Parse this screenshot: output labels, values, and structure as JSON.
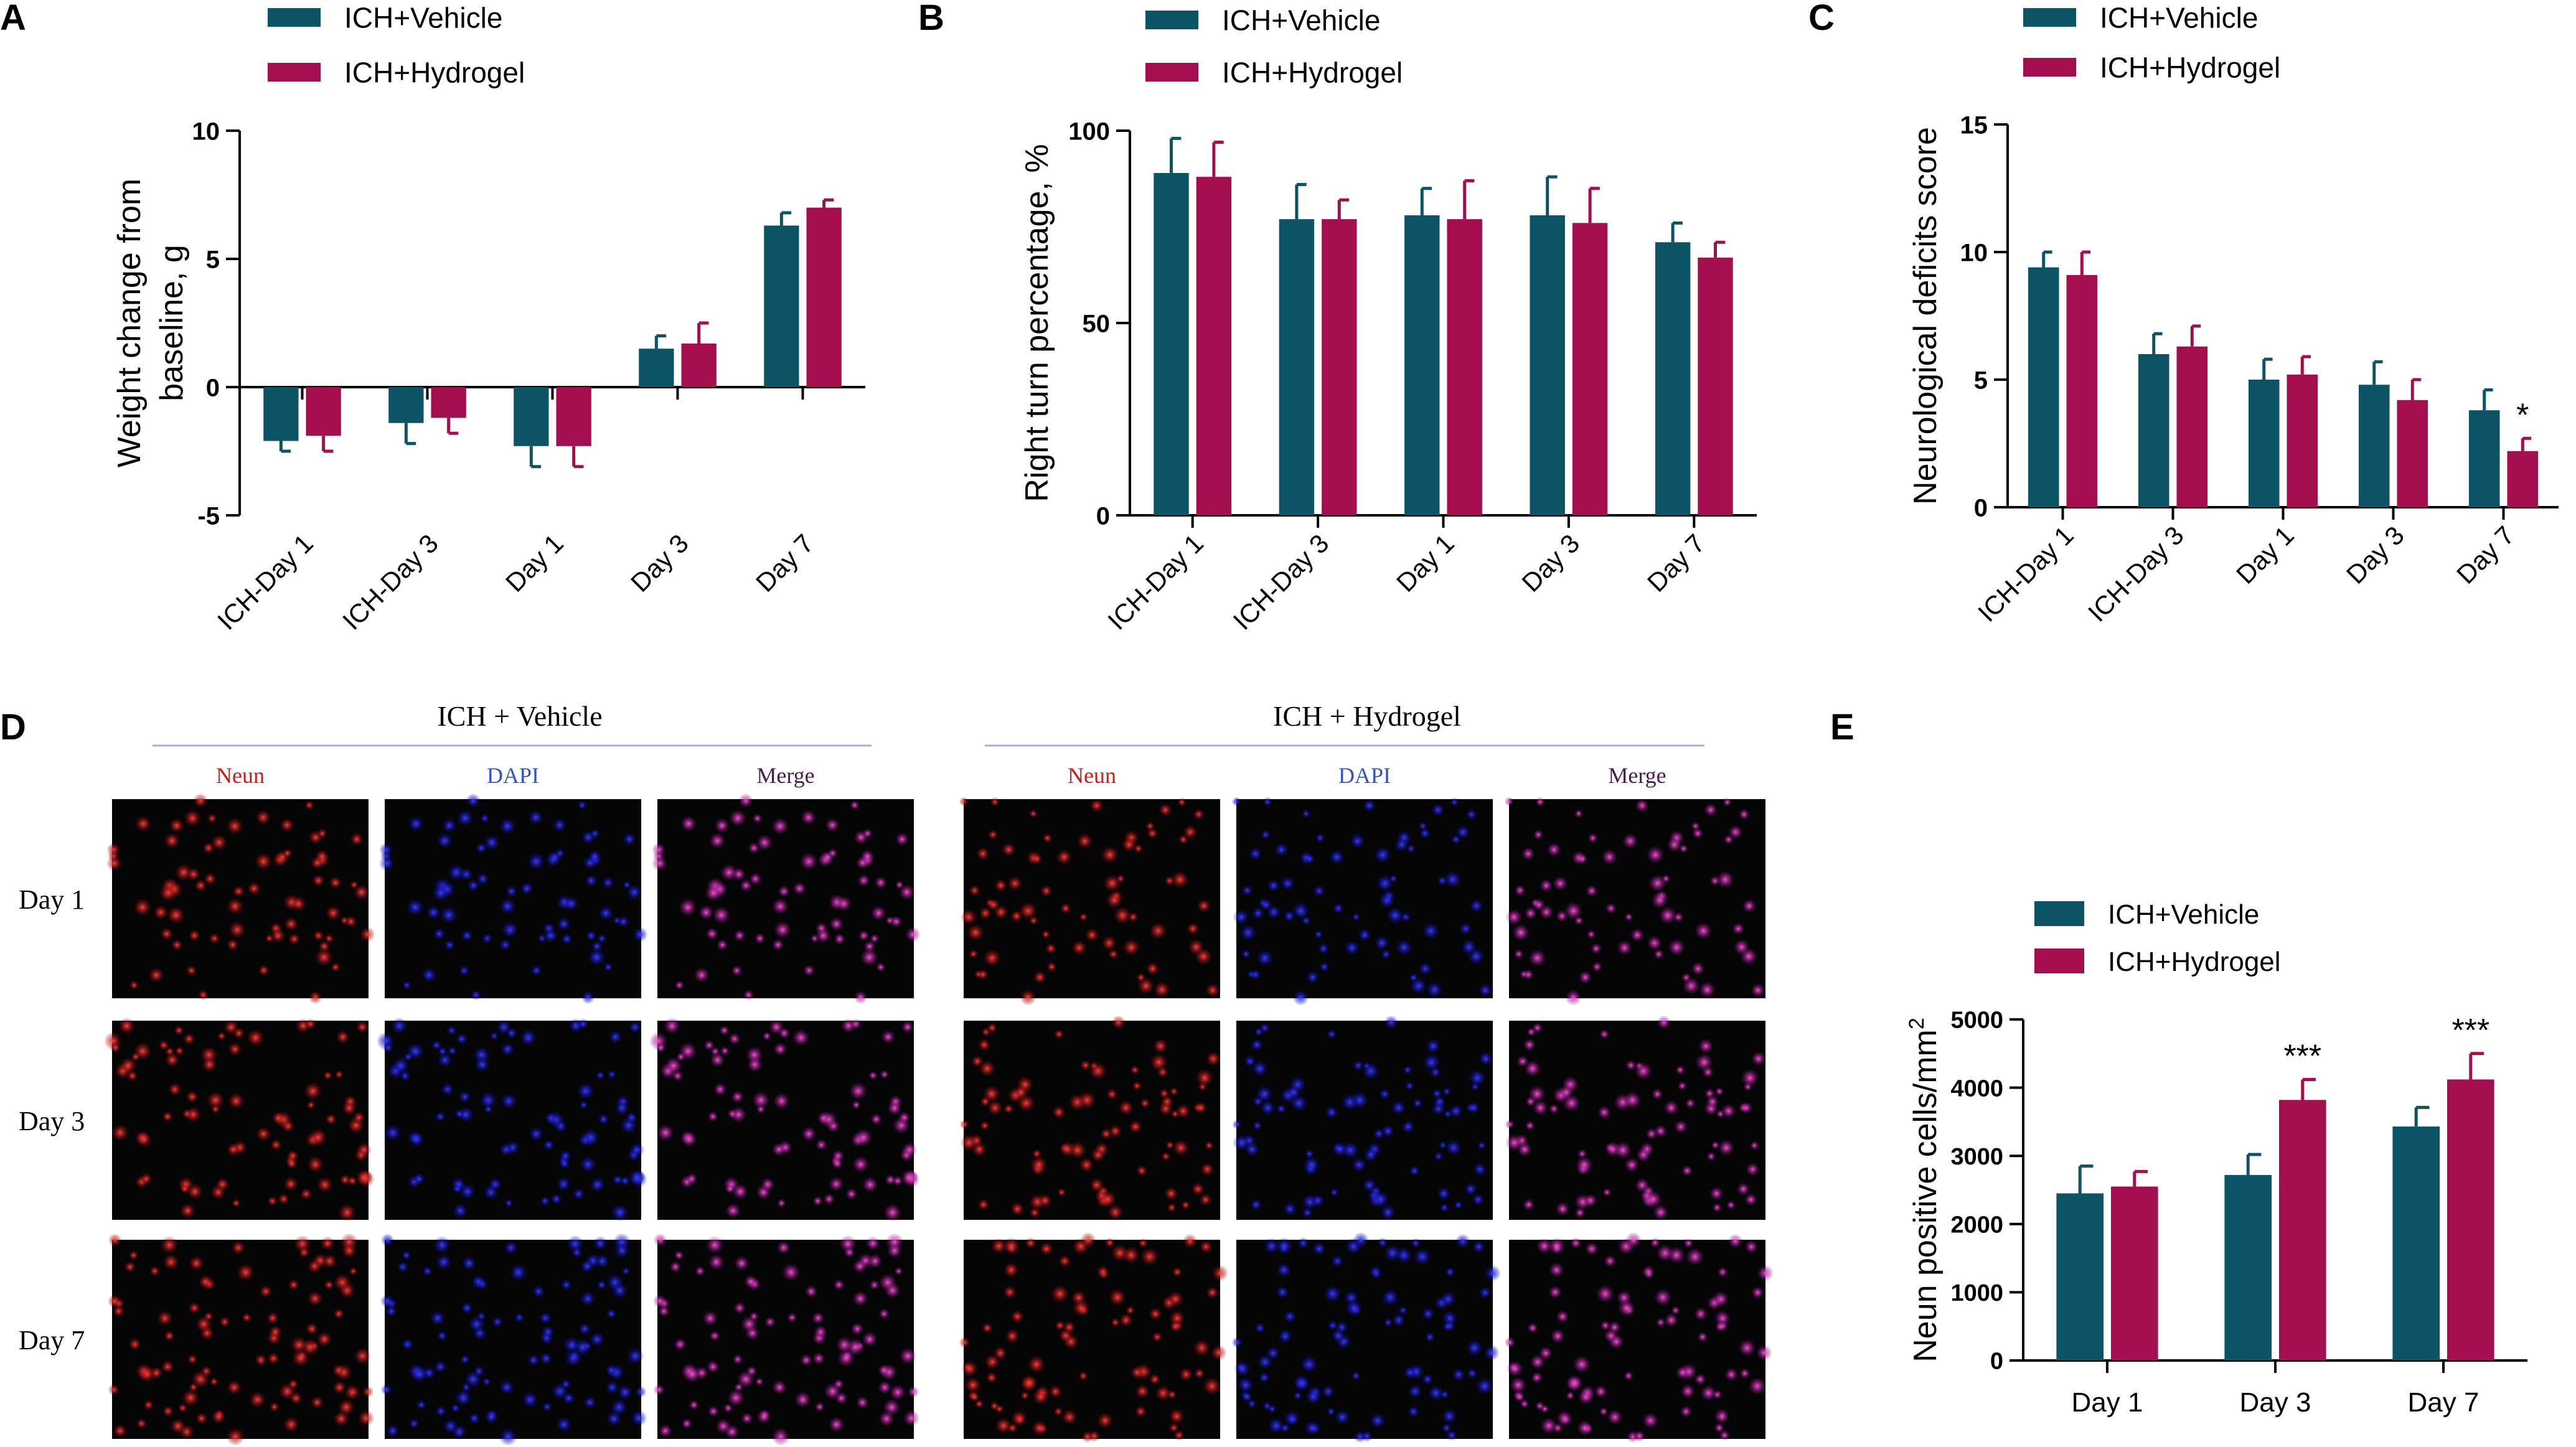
{
  "colors": {
    "vehicle": "#0d5366",
    "hydrogel": "#a50e4e",
    "axis": "#000000",
    "header_line": "#9ab6d6",
    "neun_label": "#d11b1b",
    "dapi_label": "#2c55c8",
    "merge_label": "#4a1a55"
  },
  "panel_letters": [
    "A",
    "B",
    "C",
    "D",
    "E"
  ],
  "chart_data": [
    {
      "id": "A",
      "type": "bar",
      "title": "",
      "xlabel": "",
      "ylabel_lines": [
        "Weight change from",
        "baseline, g"
      ],
      "categories": [
        "ICH-Day 1",
        "ICH-Day 3",
        "Day 1",
        "Day 3",
        "Day 7"
      ],
      "ylim": [
        -5,
        10
      ],
      "yticks": [
        -5,
        0,
        5,
        10
      ],
      "legend": [
        "ICH+Vehicle",
        "ICH+Hydrogel"
      ],
      "legend_position": "top",
      "series": [
        {
          "name": "ICH+Vehicle",
          "values": [
            -2.1,
            -1.4,
            -2.3,
            1.5,
            6.3
          ],
          "errors": [
            0.4,
            0.8,
            0.8,
            0.5,
            0.5
          ]
        },
        {
          "name": "ICH+Hydrogel",
          "values": [
            -1.9,
            -1.2,
            -2.3,
            1.7,
            7.0
          ],
          "errors": [
            0.6,
            0.6,
            0.8,
            0.8,
            0.3
          ]
        }
      ],
      "annotations": []
    },
    {
      "id": "B",
      "type": "bar",
      "title": "",
      "xlabel": "",
      "ylabel_lines": [
        "Right turn percentage, %"
      ],
      "categories": [
        "ICH-Day 1",
        "ICH-Day 3",
        "Day 1",
        "Day 3",
        "Day 7"
      ],
      "ylim": [
        0,
        100
      ],
      "yticks": [
        0,
        50,
        100
      ],
      "legend": [
        "ICH+Vehicle",
        "ICH+Hydrogel"
      ],
      "legend_position": "top",
      "series": [
        {
          "name": "ICH+Vehicle",
          "values": [
            89,
            77,
            78,
            78,
            71
          ],
          "errors": [
            9,
            9,
            7,
            10,
            5
          ]
        },
        {
          "name": "ICH+Hydrogel",
          "values": [
            88,
            77,
            77,
            76,
            67
          ],
          "errors": [
            9,
            5,
            10,
            9,
            4
          ]
        }
      ],
      "annotations": []
    },
    {
      "id": "C",
      "type": "bar",
      "title": "",
      "xlabel": "",
      "ylabel_lines": [
        "Neurological deficits score"
      ],
      "categories": [
        "ICH-Day 1",
        "ICH-Day 3",
        "Day 1",
        "Day 3",
        "Day 7"
      ],
      "ylim": [
        0,
        15
      ],
      "yticks": [
        0,
        5,
        10,
        15
      ],
      "legend": [
        "ICH+Vehicle",
        "ICH+Hydrogel"
      ],
      "legend_position": "top",
      "series": [
        {
          "name": "ICH+Vehicle",
          "values": [
            9.4,
            6.0,
            5.0,
            4.8,
            3.8
          ],
          "errors": [
            0.6,
            0.8,
            0.8,
            0.9,
            0.8
          ]
        },
        {
          "name": "ICH+Hydrogel",
          "values": [
            9.1,
            6.3,
            5.2,
            4.2,
            2.2
          ],
          "errors": [
            0.9,
            0.8,
            0.7,
            0.8,
            0.5
          ]
        }
      ],
      "annotations": [
        {
          "text": "*",
          "category": 4,
          "series": 1
        }
      ]
    },
    {
      "id": "E",
      "type": "bar",
      "title": "",
      "xlabel": "",
      "ylabel_lines": [
        "Neun positive cells/mm",
        "2"
      ],
      "categories": [
        "Day 1",
        "Day 3",
        "Day 7"
      ],
      "ylim": [
        0,
        5000
      ],
      "yticks": [
        0,
        1000,
        2000,
        3000,
        4000,
        5000
      ],
      "legend": [
        "ICH+Vehicle",
        "ICH+Hydrogel"
      ],
      "legend_position": "top-left",
      "series": [
        {
          "name": "ICH+Vehicle",
          "values": [
            2450,
            2720,
            3430
          ],
          "errors": [
            400,
            300,
            280
          ]
        },
        {
          "name": "ICH+Hydrogel",
          "values": [
            2550,
            3820,
            4120
          ],
          "errors": [
            220,
            300,
            380
          ]
        }
      ],
      "annotations": [
        {
          "text": "***",
          "category": 1,
          "series": 1
        },
        {
          "text": "***",
          "category": 2,
          "series": 1
        }
      ]
    }
  ],
  "microscopy": {
    "groups": [
      "ICH + Vehicle",
      "ICH + Hydrogel"
    ],
    "channels": [
      "Neun",
      "DAPI",
      "Merge"
    ],
    "rows": [
      "Day 1",
      "Day 3",
      "Day 7"
    ]
  }
}
